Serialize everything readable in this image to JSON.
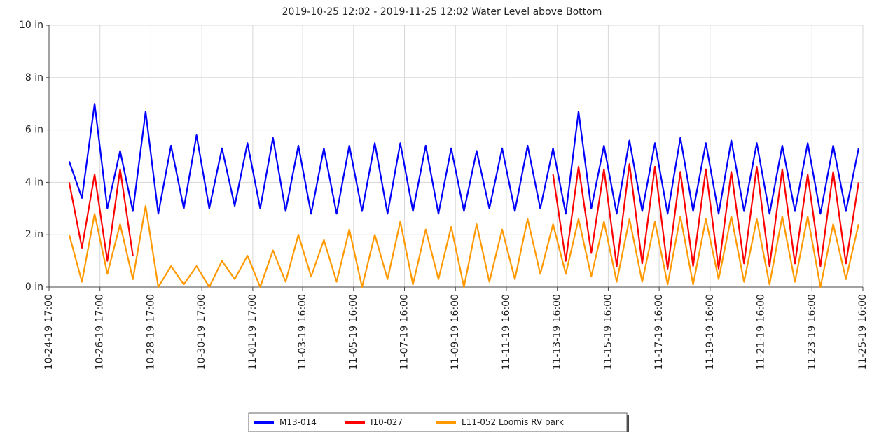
{
  "chart_data": {
    "type": "line",
    "title": "2019-10-25 12:02 - 2019-11-25 12:02 Water Level above Bottom",
    "x": [
      "2019-10-25T12:00",
      "2019-10-26T00:00",
      "2019-10-26T12:00",
      "2019-10-27T00:00",
      "2019-10-27T12:00",
      "2019-10-28T00:00",
      "2019-10-28T12:00",
      "2019-10-29T00:00",
      "2019-10-29T12:00",
      "2019-10-30T00:00",
      "2019-10-30T12:00",
      "2019-10-31T00:00",
      "2019-10-31T12:00",
      "2019-11-01T00:00",
      "2019-11-01T12:00",
      "2019-11-02T00:00",
      "2019-11-02T12:00",
      "2019-11-03T00:00",
      "2019-11-03T12:00",
      "2019-11-04T00:00",
      "2019-11-04T12:00",
      "2019-11-05T00:00",
      "2019-11-05T12:00",
      "2019-11-06T00:00",
      "2019-11-06T12:00",
      "2019-11-07T00:00",
      "2019-11-07T12:00",
      "2019-11-08T00:00",
      "2019-11-08T12:00",
      "2019-11-09T00:00",
      "2019-11-09T12:00",
      "2019-11-10T00:00",
      "2019-11-10T12:00",
      "2019-11-11T00:00",
      "2019-11-11T12:00",
      "2019-11-12T00:00",
      "2019-11-12T12:00",
      "2019-11-13T00:00",
      "2019-11-13T12:00",
      "2019-11-14T00:00",
      "2019-11-14T12:00",
      "2019-11-15T00:00",
      "2019-11-15T12:00",
      "2019-11-16T00:00",
      "2019-11-16T12:00",
      "2019-11-17T00:00",
      "2019-11-17T12:00",
      "2019-11-18T00:00",
      "2019-11-18T12:00",
      "2019-11-19T00:00",
      "2019-11-19T12:00",
      "2019-11-20T00:00",
      "2019-11-20T12:00",
      "2019-11-21T00:00",
      "2019-11-21T12:00",
      "2019-11-22T00:00",
      "2019-11-22T12:00",
      "2019-11-23T00:00",
      "2019-11-23T12:00",
      "2019-11-24T00:00",
      "2019-11-24T12:00",
      "2019-11-25T00:00",
      "2019-11-25T12:00"
    ],
    "series": [
      {
        "name": "M13-014",
        "color": "#0000ff",
        "values": [
          4.8,
          3.4,
          7.0,
          3.0,
          5.2,
          2.9,
          6.7,
          2.8,
          5.4,
          3.0,
          5.8,
          3.0,
          5.3,
          3.1,
          5.5,
          3.0,
          5.7,
          2.9,
          5.4,
          2.8,
          5.3,
          2.8,
          5.4,
          2.9,
          5.5,
          2.8,
          5.5,
          2.9,
          5.4,
          2.8,
          5.3,
          2.9,
          5.2,
          3.0,
          5.3,
          2.9,
          5.4,
          3.0,
          5.3,
          2.8,
          6.7,
          3.0,
          5.4,
          2.8,
          5.6,
          2.9,
          5.5,
          2.8,
          5.7,
          2.9,
          5.5,
          2.8,
          5.6,
          2.9,
          5.5,
          2.8,
          5.4,
          2.9,
          5.5,
          2.8,
          5.4,
          2.9,
          5.3
        ]
      },
      {
        "name": "I10-027",
        "color": "#ff0000",
        "values": [
          4.0,
          1.5,
          4.3,
          1.0,
          4.5,
          1.2,
          null,
          null,
          null,
          null,
          null,
          null,
          null,
          null,
          null,
          null,
          null,
          null,
          null,
          null,
          null,
          null,
          null,
          null,
          null,
          null,
          null,
          null,
          null,
          null,
          null,
          null,
          null,
          null,
          null,
          null,
          null,
          null,
          4.3,
          1.0,
          4.6,
          1.3,
          4.5,
          0.8,
          4.7,
          0.9,
          4.6,
          0.7,
          4.4,
          0.8,
          4.5,
          0.7,
          4.4,
          0.9,
          4.6,
          0.8,
          4.5,
          0.9,
          4.3,
          0.8,
          4.4,
          0.9,
          4.0
        ]
      },
      {
        "name": "L11-052 Loomis RV park",
        "color": "#ff9900",
        "values": [
          2.0,
          0.2,
          2.8,
          0.5,
          2.4,
          0.3,
          3.1,
          0.0,
          0.8,
          0.1,
          0.8,
          0.0,
          1.0,
          0.3,
          1.2,
          0.0,
          1.4,
          0.2,
          2.0,
          0.4,
          1.8,
          0.2,
          2.2,
          0.0,
          2.0,
          0.3,
          2.5,
          0.1,
          2.2,
          0.3,
          2.3,
          0.0,
          2.4,
          0.2,
          2.2,
          0.3,
          2.6,
          0.5,
          2.4,
          0.5,
          2.6,
          0.4,
          2.5,
          0.2,
          2.6,
          0.2,
          2.5,
          0.1,
          2.7,
          0.1,
          2.6,
          0.3,
          2.7,
          0.2,
          2.6,
          0.1,
          2.7,
          0.2,
          2.7,
          0.0,
          2.4,
          0.3,
          2.4
        ]
      }
    ],
    "xlim": [
      "2019-10-24T17:00",
      "2019-11-25T16:00"
    ],
    "xticks": [
      {
        "value": "2019-10-24T17:00",
        "label": "10-24-19 17:00"
      },
      {
        "value": "2019-10-26T17:00",
        "label": "10-26-19 17:00"
      },
      {
        "value": "2019-10-28T17:00",
        "label": "10-28-19 17:00"
      },
      {
        "value": "2019-10-30T17:00",
        "label": "10-30-19 17:00"
      },
      {
        "value": "2019-11-01T17:00",
        "label": "11-01-19 17:00"
      },
      {
        "value": "2019-11-03T16:00",
        "label": "11-03-19 16:00"
      },
      {
        "value": "2019-11-05T16:00",
        "label": "11-05-19 16:00"
      },
      {
        "value": "2019-11-07T16:00",
        "label": "11-07-19 16:00"
      },
      {
        "value": "2019-11-09T16:00",
        "label": "11-09-19 16:00"
      },
      {
        "value": "2019-11-11T16:00",
        "label": "11-11-19 16:00"
      },
      {
        "value": "2019-11-13T16:00",
        "label": "11-13-19 16:00"
      },
      {
        "value": "2019-11-15T16:00",
        "label": "11-15-19 16:00"
      },
      {
        "value": "2019-11-17T16:00",
        "label": "11-17-19 16:00"
      },
      {
        "value": "2019-11-19T16:00",
        "label": "11-19-19 16:00"
      },
      {
        "value": "2019-11-21T16:00",
        "label": "11-21-19 16:00"
      },
      {
        "value": "2019-11-23T16:00",
        "label": "11-23-19 16:00"
      },
      {
        "value": "2019-11-25T16:00",
        "label": "11-25-19 16:00"
      }
    ],
    "ylim": [
      0,
      10
    ],
    "yticks": [
      {
        "value": 0,
        "label": "0 in"
      },
      {
        "value": 2,
        "label": "2 in"
      },
      {
        "value": 4,
        "label": "4 in"
      },
      {
        "value": 6,
        "label": "6 in"
      },
      {
        "value": 8,
        "label": "8 in"
      },
      {
        "value": 10,
        "label": "10 in"
      }
    ],
    "grid": true,
    "legend": "bottom"
  }
}
